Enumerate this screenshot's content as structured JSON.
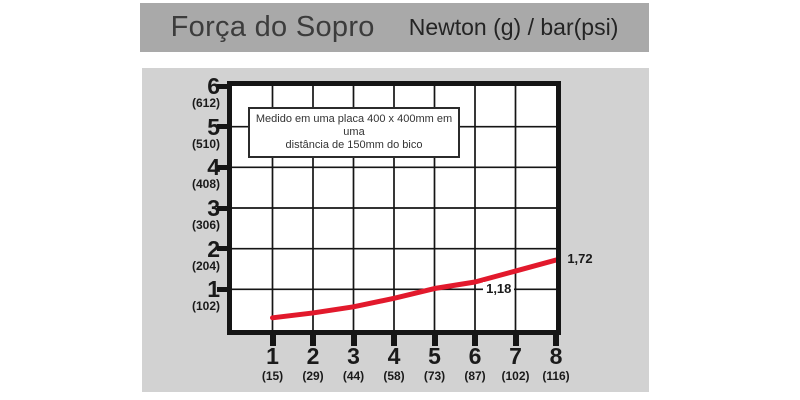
{
  "header": {
    "title": "Força do Sopro",
    "units": "Newton (g) / bar(psi)"
  },
  "colors": {
    "title_bar_bg": "#a9a9a9",
    "panel_bg": "#d2d2d2",
    "plot_bg": "#ffffff",
    "ink": "#151515",
    "curve_red": "#e2192c"
  },
  "chart_data": {
    "type": "line",
    "title": "Força do Sopro",
    "xlabel": "bar (psi)",
    "ylabel": "Newton (g)",
    "xlim": [
      0,
      8
    ],
    "ylim": [
      0,
      6
    ],
    "grid": true,
    "note_lines": [
      "Medido em uma placa 400 x 400mm em uma",
      "distância de 150mm do bico"
    ],
    "x_axis": {
      "ticks": [
        {
          "value": 1,
          "label": "1",
          "sub": "(15)"
        },
        {
          "value": 2,
          "label": "2",
          "sub": "(29)"
        },
        {
          "value": 3,
          "label": "3",
          "sub": "(44)"
        },
        {
          "value": 4,
          "label": "4",
          "sub": "(58)"
        },
        {
          "value": 5,
          "label": "5",
          "sub": "(73)"
        },
        {
          "value": 6,
          "label": "6",
          "sub": "(87)"
        },
        {
          "value": 7,
          "label": "7",
          "sub": "(102)"
        },
        {
          "value": 8,
          "label": "8",
          "sub": "(116)"
        }
      ]
    },
    "y_axis": {
      "ticks": [
        {
          "value": 6,
          "label": "6",
          "sub": "(612)"
        },
        {
          "value": 5,
          "label": "5",
          "sub": "(510)"
        },
        {
          "value": 4,
          "label": "4",
          "sub": "(408)"
        },
        {
          "value": 3,
          "label": "3",
          "sub": "(306)"
        },
        {
          "value": 2,
          "label": "2",
          "sub": "(204)"
        },
        {
          "value": 1,
          "label": "1",
          "sub": "(102)"
        }
      ]
    },
    "series": [
      {
        "name": "forca-do-sopro",
        "color": "#e2192c",
        "points": [
          {
            "x": 1,
            "y": 0.3
          },
          {
            "x": 2,
            "y": 0.42
          },
          {
            "x": 3,
            "y": 0.57
          },
          {
            "x": 4,
            "y": 0.78
          },
          {
            "x": 5,
            "y": 1.02
          },
          {
            "x": 6,
            "y": 1.18
          },
          {
            "x": 7,
            "y": 1.45
          },
          {
            "x": 8,
            "y": 1.72
          }
        ]
      }
    ],
    "annotations": [
      {
        "text": "1,18",
        "x": 6.2,
        "y": 1.0,
        "white_bg": true
      },
      {
        "text": "1,72",
        "x": 8.28,
        "y": 1.75,
        "white_bg": false
      }
    ]
  }
}
